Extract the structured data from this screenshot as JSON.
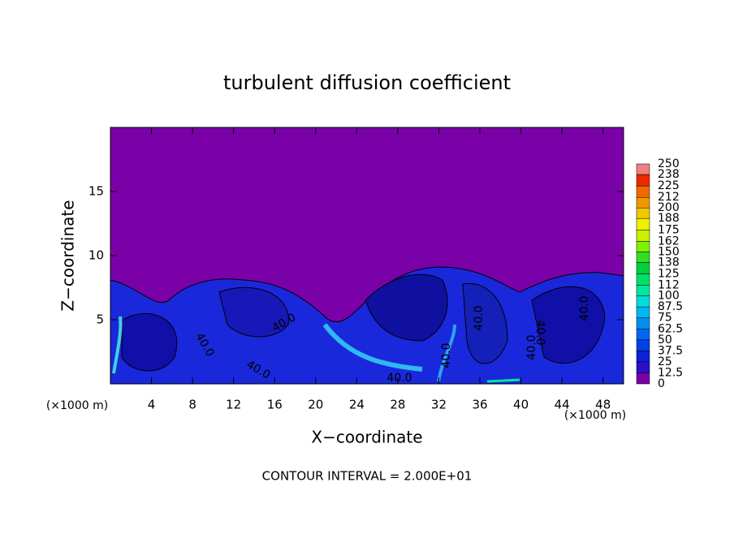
{
  "chart_data": {
    "type": "contour",
    "title": "turbulent diffusion coefficient",
    "x_label": "X−coordinate",
    "y_label": "Z−coordinate",
    "x_unit_labels": [
      "(×1000 m)",
      "(×1000 m)"
    ],
    "xlim": [
      0,
      50
    ],
    "xticks": [
      4,
      8,
      12,
      16,
      20,
      24,
      28,
      32,
      36,
      40,
      44,
      48
    ],
    "ylim": [
      0,
      20
    ],
    "yticks": [
      5,
      10,
      15
    ],
    "colorbar": {
      "ticks": [
        0,
        12.5,
        25,
        37.5,
        50,
        62.5,
        75,
        87.5,
        100,
        112,
        125,
        138,
        150,
        162,
        175,
        188,
        200,
        212,
        225,
        238,
        250
      ],
      "colors": [
        "#7a00a8",
        "#2a10c8",
        "#1020d8",
        "#0040e8",
        "#0068f0",
        "#0090f0",
        "#00b8f0",
        "#00dcd8",
        "#00e8a0",
        "#00e068",
        "#00d040",
        "#30e020",
        "#80f000",
        "#c8f000",
        "#f0f000",
        "#f0c800",
        "#f09800",
        "#f06800",
        "#f02800",
        "#f08080"
      ]
    },
    "contour_labels": [
      "40.0",
      "40.0",
      "40.0",
      "40.0",
      "40.0",
      "40.0",
      "40.0",
      "40.0",
      "40.0"
    ],
    "footer": "CONTOUR INTERVAL = 2.000E+01"
  }
}
